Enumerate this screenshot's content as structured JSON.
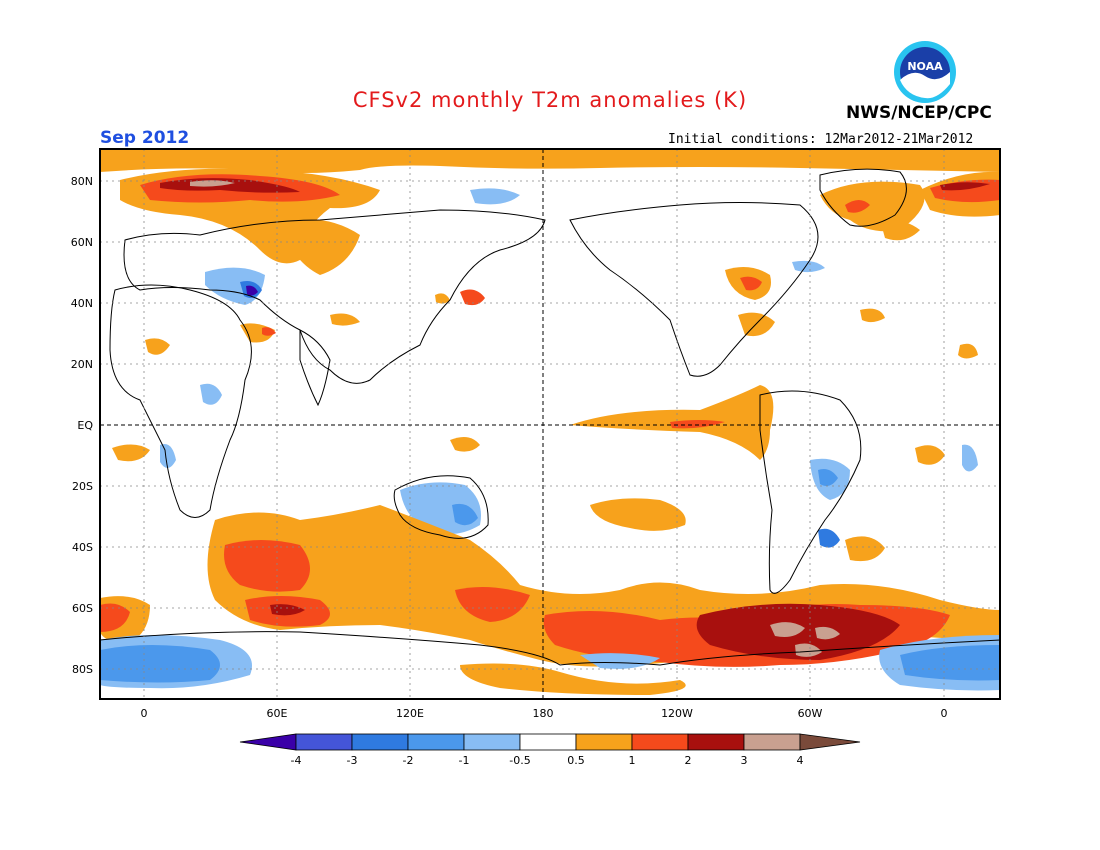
{
  "header": {
    "title": "CFSv2 monthly T2m anomalies (K)",
    "month": "Sep 2012",
    "agency": "NWS/NCEP/CPC",
    "initial_conditions": "Initial conditions: 12Mar2012-21Mar2012",
    "logo_text": "NOAA"
  },
  "map": {
    "lat_labels": [
      "80N",
      "60N",
      "40N",
      "20N",
      "EQ",
      "20S",
      "40S",
      "60S",
      "80S"
    ],
    "lon_labels": [
      "0",
      "60E",
      "120E",
      "180",
      "120W",
      "60W",
      "0"
    ]
  },
  "colorbar": {
    "labels": [
      "-4",
      "-3",
      "-2",
      "-1",
      "-0.5",
      "0.5",
      "1",
      "2",
      "3",
      "4"
    ],
    "colors": [
      "#3a00a8",
      "#4455d8",
      "#2f7ae0",
      "#4b98ec",
      "#88bdf4",
      "#ffffff",
      "#f7a21c",
      "#f54a1c",
      "#a8100e",
      "#c9a090",
      "#7a4a3a"
    ]
  },
  "palette": {
    "warm1": "#f7a21c",
    "warm2": "#f54a1c",
    "warm3": "#a8100e",
    "warm4": "#c9a090",
    "cool1": "#88bdf4",
    "cool2": "#4b98ec",
    "cool3": "#2f7ae0",
    "cool4": "#4455d8"
  }
}
